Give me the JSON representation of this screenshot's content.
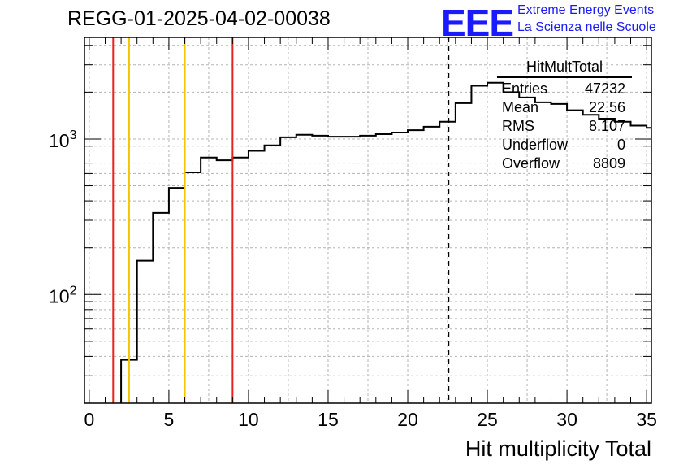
{
  "header": {
    "run_title": "REGG-01-2025-04-02-00038",
    "logo_text": "EEE",
    "logo_line1": "Extreme Energy Events",
    "logo_line2": "La Scienza nelle Scuole"
  },
  "stats_box": {
    "name": "HitMultTotal",
    "rows": [
      {
        "label": "Entries",
        "value": "47232"
      },
      {
        "label": "Mean",
        "value": "22.56"
      },
      {
        "label": "RMS",
        "value": "8.107"
      },
      {
        "label": "Underflow",
        "value": "0"
      },
      {
        "label": "Overflow",
        "value": "8809"
      }
    ]
  },
  "chart_data": {
    "type": "histogram",
    "title": "REGG-01-2025-04-02-00038",
    "xlabel": "Hit multiplicity Total",
    "ylabel": "",
    "xlim": [
      -0.3,
      35.3
    ],
    "ylim": [
      20,
      4500
    ],
    "y_scale": "log",
    "grid": true,
    "bin_width": 1,
    "bin_edges_start": 0,
    "values": [
      0,
      0,
      38,
      165,
      335,
      485,
      610,
      760,
      730,
      760,
      840,
      910,
      1025,
      1065,
      1050,
      1035,
      1035,
      1050,
      1075,
      1100,
      1140,
      1200,
      1290,
      1700,
      2200,
      2300,
      2000,
      1850,
      1720,
      1680,
      1530,
      1430,
      1350,
      1290,
      1220,
      1180
    ],
    "x_ticks": [
      0,
      5,
      10,
      15,
      20,
      25,
      30,
      35
    ],
    "y_ticks": [
      {
        "value": 100,
        "label": "10",
        "exp": "2"
      },
      {
        "value": 1000,
        "label": "10",
        "exp": "3"
      }
    ],
    "vertical_lines": [
      {
        "x": 1.5,
        "color": "#e8231f",
        "style": "solid"
      },
      {
        "x": 2.5,
        "color": "#f5c400",
        "style": "solid"
      },
      {
        "x": 6.0,
        "color": "#f5c400",
        "style": "solid"
      },
      {
        "x": 9.0,
        "color": "#e8231f",
        "style": "solid"
      },
      {
        "x": 22.56,
        "color": "#000000",
        "style": "dashed"
      }
    ]
  }
}
